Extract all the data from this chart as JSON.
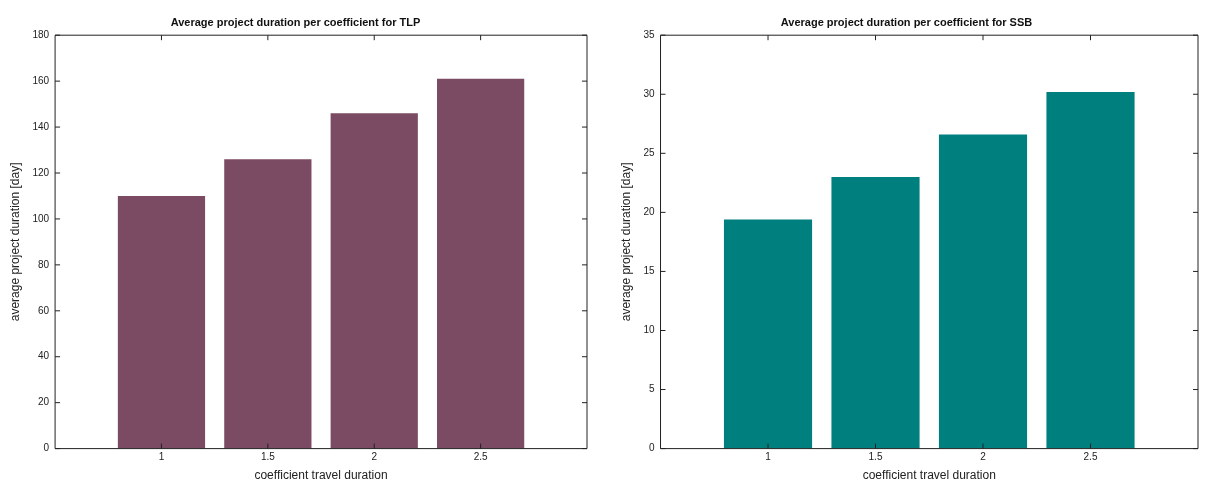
{
  "chart_data": [
    {
      "type": "bar",
      "title": "Average project duration per coefficient for TLP",
      "xlabel": "coefficient travel duration",
      "ylabel": "average project duration [day]",
      "categories": [
        "1",
        "1.5",
        "2",
        "2.5"
      ],
      "series": [
        {
          "color": "#7b4a63",
          "values": [
            110,
            126,
            146,
            161
          ]
        }
      ],
      "ylim": [
        0,
        180
      ],
      "yticks": [
        0,
        20,
        40,
        60,
        80,
        100,
        120,
        140,
        160,
        180
      ],
      "grid": false,
      "legend": false
    },
    {
      "type": "bar",
      "title": "Average project duration per coefficient for SSB",
      "xlabel": "coefficient travel duration",
      "ylabel": "average project duration [day]",
      "categories": [
        "1",
        "1.5",
        "2",
        "2.5"
      ],
      "series": [
        {
          "color": "#007f7f",
          "values": [
            19.4,
            23,
            26.6,
            30.2
          ]
        }
      ],
      "ylim": [
        0,
        35
      ],
      "yticks": [
        0,
        5,
        10,
        15,
        20,
        25,
        30,
        35
      ],
      "grid": false,
      "legend": false
    }
  ]
}
